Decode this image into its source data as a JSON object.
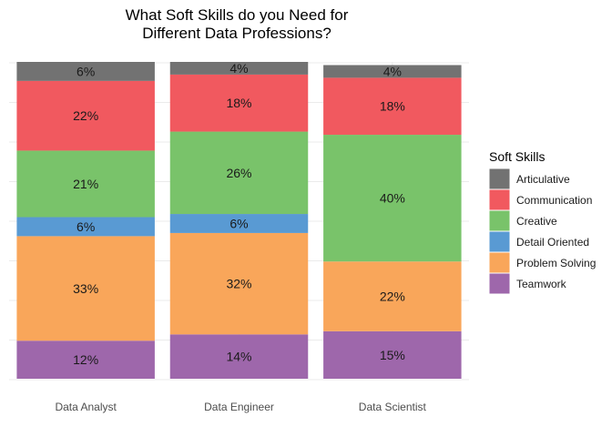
{
  "chart_data": {
    "type": "bar",
    "stacked": true,
    "orientation": "vertical",
    "title_lines": [
      "What Soft Skills do you Need for",
      "Different Data Professions?"
    ],
    "xlabel": "",
    "ylabel": "",
    "ylim": [
      0,
      100
    ],
    "grid": true,
    "legend_title": "Soft Skills",
    "legend_position": "right",
    "categories": [
      "Data Analyst",
      "Data Engineer",
      "Data Scientist"
    ],
    "series": [
      {
        "name": "Teamwork",
        "color": "#9E67AB",
        "values": [
          12,
          14,
          15
        ],
        "labels": [
          "12%",
          "14%",
          "15%"
        ]
      },
      {
        "name": "Problem Solving",
        "color": "#F9A65A",
        "values": [
          33,
          32,
          22
        ],
        "labels": [
          "33%",
          "32%",
          "22%"
        ]
      },
      {
        "name": "Detail Oriented",
        "color": "#599AD3",
        "values": [
          6,
          6,
          0
        ],
        "labels": [
          "6%",
          "6%",
          ""
        ]
      },
      {
        "name": "Creative",
        "color": "#79C36A",
        "values": [
          21,
          26,
          40
        ],
        "labels": [
          "21%",
          "26%",
          "40%"
        ]
      },
      {
        "name": "Communication",
        "color": "#F1595F",
        "values": [
          22,
          18,
          18
        ],
        "labels": [
          "22%",
          "18%",
          "18%"
        ]
      },
      {
        "name": "Articulative",
        "color": "#727272",
        "values": [
          6,
          4,
          4
        ],
        "labels": [
          "6%",
          "4%",
          "4%"
        ]
      }
    ]
  }
}
